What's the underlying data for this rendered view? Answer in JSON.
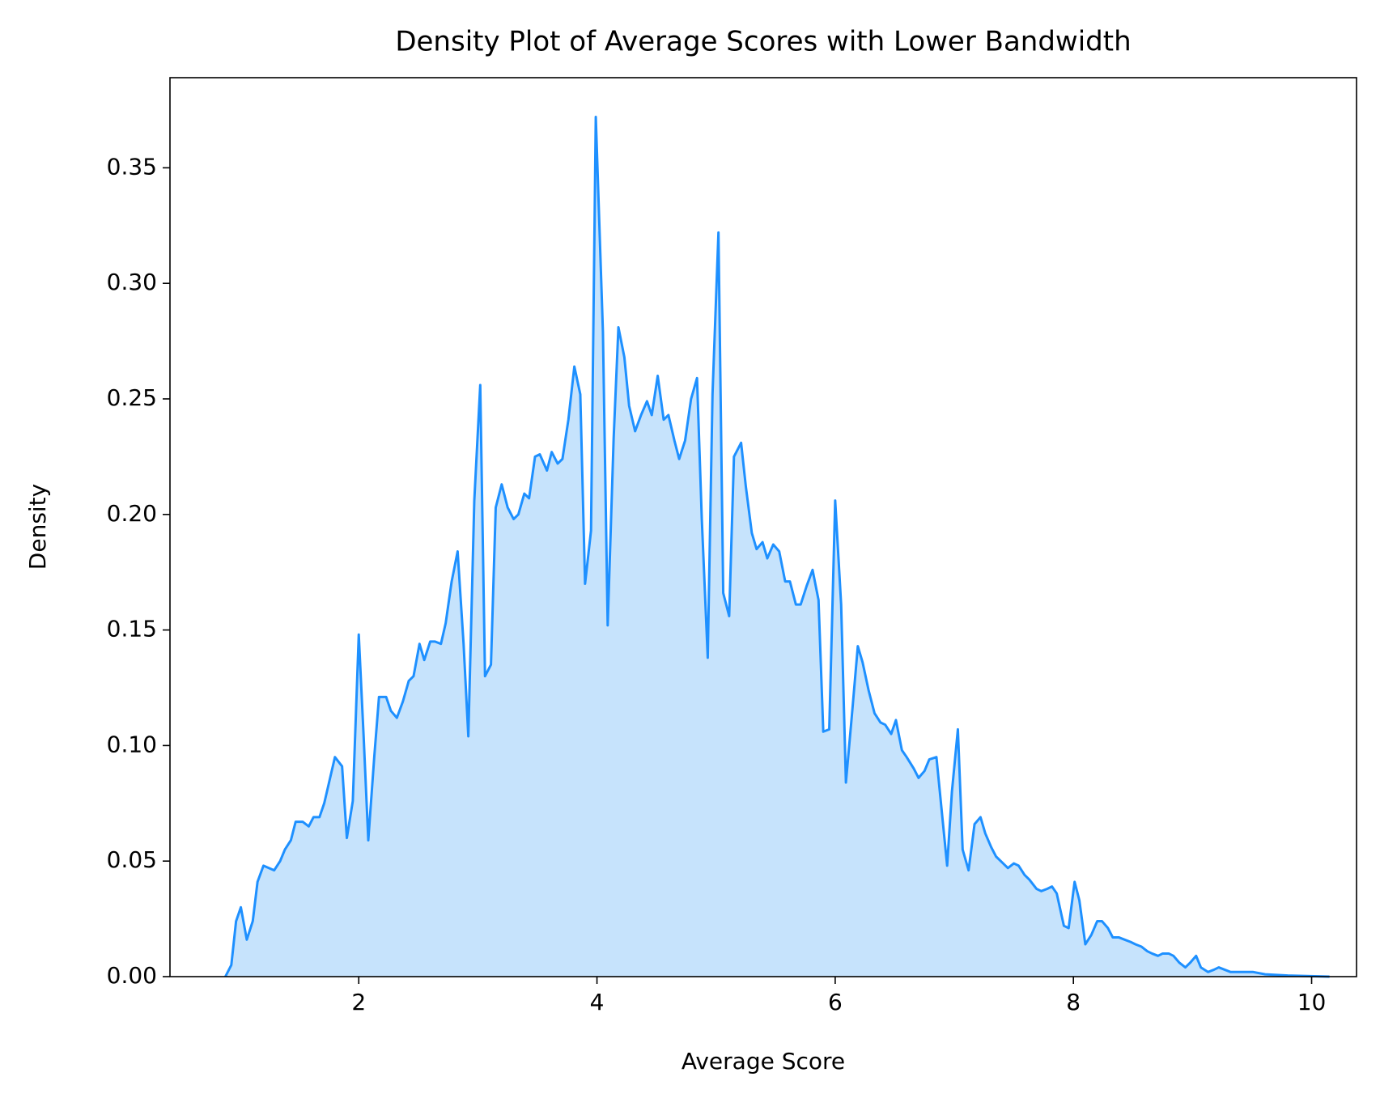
{
  "chart_data": {
    "type": "area",
    "title": "Density Plot of Average Scores with Lower Bandwidth",
    "x_label": "Average Score",
    "y_label": "Density",
    "color": "#1e90ff",
    "fill_color": "#c6e3fc",
    "x": [
      0.88,
      0.93,
      0.97,
      1.01,
      1.06,
      1.11,
      1.15,
      1.2,
      1.29,
      1.34,
      1.38,
      1.43,
      1.47,
      1.53,
      1.58,
      1.62,
      1.67,
      1.71,
      1.8,
      1.86,
      1.9,
      1.95,
      2.0,
      2.04,
      2.08,
      2.13,
      2.17,
      2.23,
      2.27,
      2.32,
      2.37,
      2.42,
      2.46,
      2.51,
      2.55,
      2.6,
      2.64,
      2.69,
      2.73,
      2.78,
      2.83,
      2.88,
      2.92,
      2.97,
      3.02,
      3.06,
      3.11,
      3.15,
      3.2,
      3.25,
      3.3,
      3.34,
      3.39,
      3.43,
      3.48,
      3.52,
      3.58,
      3.62,
      3.67,
      3.71,
      3.76,
      3.81,
      3.86,
      3.9,
      3.95,
      3.99,
      4.05,
      4.09,
      4.14,
      4.18,
      4.23,
      4.27,
      4.32,
      4.37,
      4.42,
      4.46,
      4.51,
      4.56,
      4.6,
      4.65,
      4.69,
      4.74,
      4.79,
      4.84,
      4.88,
      4.93,
      4.97,
      5.02,
      5.06,
      5.11,
      5.15,
      5.21,
      5.25,
      5.3,
      5.34,
      5.39,
      5.43,
      5.48,
      5.53,
      5.58,
      5.62,
      5.67,
      5.71,
      5.76,
      5.81,
      5.86,
      5.9,
      5.95,
      6.0,
      6.05,
      6.09,
      6.14,
      6.19,
      6.23,
      6.28,
      6.33,
      6.38,
      6.42,
      6.47,
      6.51,
      6.56,
      6.6,
      6.66,
      6.7,
      6.75,
      6.79,
      6.85,
      6.89,
      6.94,
      6.98,
      7.03,
      7.07,
      7.12,
      7.17,
      7.22,
      7.26,
      7.31,
      7.35,
      7.41,
      7.45,
      7.5,
      7.54,
      7.59,
      7.63,
      7.69,
      7.73,
      7.78,
      7.82,
      7.86,
      7.92,
      7.96,
      8.01,
      8.05,
      8.1,
      8.15,
      8.2,
      8.24,
      8.29,
      8.33,
      8.38,
      8.43,
      8.48,
      8.52,
      8.57,
      8.62,
      8.66,
      8.71,
      8.75,
      8.8,
      8.84,
      8.89,
      8.94,
      8.98,
      9.03,
      9.07,
      9.13,
      9.18,
      9.22,
      9.27,
      9.32,
      9.41,
      9.51,
      9.61,
      9.8,
      10.15
    ],
    "values": [
      0,
      0.005,
      0.024,
      0.03,
      0.016,
      0.024,
      0.041,
      0.048,
      0.046,
      0.05,
      0.055,
      0.059,
      0.067,
      0.067,
      0.065,
      0.069,
      0.069,
      0.075,
      0.095,
      0.091,
      0.06,
      0.076,
      0.148,
      0.105,
      0.059,
      0.095,
      0.121,
      0.121,
      0.115,
      0.112,
      0.119,
      0.128,
      0.13,
      0.144,
      0.137,
      0.145,
      0.145,
      0.144,
      0.153,
      0.171,
      0.184,
      0.144,
      0.104,
      0.206,
      0.256,
      0.13,
      0.135,
      0.203,
      0.213,
      0.203,
      0.198,
      0.2,
      0.209,
      0.207,
      0.225,
      0.226,
      0.219,
      0.227,
      0.222,
      0.224,
      0.241,
      0.264,
      0.252,
      0.17,
      0.193,
      0.372,
      0.279,
      0.152,
      0.233,
      0.281,
      0.268,
      0.247,
      0.236,
      0.243,
      0.249,
      0.243,
      0.26,
      0.241,
      0.243,
      0.232,
      0.224,
      0.232,
      0.25,
      0.259,
      0.198,
      0.138,
      0.252,
      0.322,
      0.166,
      0.156,
      0.225,
      0.231,
      0.212,
      0.192,
      0.185,
      0.188,
      0.181,
      0.187,
      0.184,
      0.171,
      0.171,
      0.161,
      0.161,
      0.169,
      0.176,
      0.163,
      0.106,
      0.107,
      0.206,
      0.161,
      0.084,
      0.113,
      0.143,
      0.136,
      0.124,
      0.114,
      0.11,
      0.109,
      0.105,
      0.111,
      0.098,
      0.095,
      0.09,
      0.086,
      0.089,
      0.094,
      0.095,
      0.074,
      0.048,
      0.08,
      0.107,
      0.055,
      0.046,
      0.066,
      0.069,
      0.062,
      0.056,
      0.052,
      0.049,
      0.047,
      0.049,
      0.048,
      0.044,
      0.042,
      0.038,
      0.037,
      0.038,
      0.039,
      0.036,
      0.022,
      0.021,
      0.041,
      0.033,
      0.014,
      0.018,
      0.024,
      0.024,
      0.021,
      0.017,
      0.017,
      0.016,
      0.015,
      0.014,
      0.013,
      0.011,
      0.01,
      0.009,
      0.01,
      0.01,
      0.009,
      0.006,
      0.004,
      0.006,
      0.009,
      0.004,
      0.002,
      0.003,
      0.004,
      0.003,
      0.002,
      0.002,
      0.002,
      0.001,
      0.0005,
      0
    ],
    "xlim": [
      0.415,
      10.377
    ],
    "ylim": [
      0,
      0.389
    ],
    "xticks": [
      2,
      4,
      6,
      8,
      10
    ],
    "yticks": [
      {
        "value": 0,
        "label": "0.00"
      },
      0.05,
      {
        "value": 0.1,
        "label": "0.10"
      },
      0.15,
      {
        "value": 0.2,
        "label": "0.20"
      },
      0.25,
      {
        "value": 0.3,
        "label": "0.30"
      },
      0.35
    ]
  }
}
